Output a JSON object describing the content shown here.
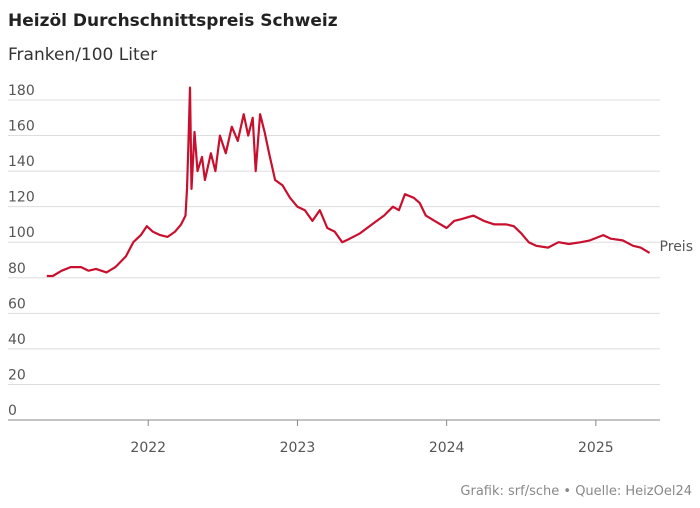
{
  "chart_data": {
    "type": "line",
    "title": "Heizöl Durchschnittspreis Schweiz",
    "subtitle": "Franken/100 Liter",
    "source": "Grafik: srf/sche • Quelle: HeizOel24",
    "x": [
      2021.32,
      2021.36,
      2021.42,
      2021.48,
      2021.55,
      2021.6,
      2021.65,
      2021.72,
      2021.78,
      2021.85,
      2021.9,
      2021.95,
      2021.99,
      2022.03,
      2022.08,
      2022.13,
      2022.18,
      2022.22,
      2022.25,
      2022.26,
      2022.27,
      2022.28,
      2022.29,
      2022.31,
      2022.33,
      2022.36,
      2022.38,
      2022.42,
      2022.45,
      2022.48,
      2022.52,
      2022.56,
      2022.6,
      2022.64,
      2022.67,
      2022.7,
      2022.72,
      2022.75,
      2022.78,
      2022.81,
      2022.85,
      2022.9,
      2022.95,
      2023.0,
      2023.05,
      2023.1,
      2023.15,
      2023.2,
      2023.25,
      2023.3,
      2023.35,
      2023.42,
      2023.5,
      2023.58,
      2023.64,
      2023.68,
      2023.72,
      2023.78,
      2023.82,
      2023.86,
      2023.92,
      2024.0,
      2024.05,
      2024.1,
      2024.18,
      2024.25,
      2024.32,
      2024.4,
      2024.45,
      2024.5,
      2024.55,
      2024.6,
      2024.68,
      2024.75,
      2024.82,
      2024.9,
      2024.96,
      2025.05,
      2025.1,
      2025.18,
      2025.25,
      2025.3,
      2025.36
    ],
    "series": [
      {
        "name": "Preis",
        "color": "#c8102e",
        "values": [
          81,
          81,
          84,
          86,
          86,
          84,
          85,
          83,
          86,
          92,
          100,
          104,
          109,
          106,
          104,
          103,
          106,
          110,
          115,
          130,
          157,
          187,
          130,
          162,
          140,
          148,
          135,
          150,
          140,
          160,
          150,
          165,
          157,
          172,
          160,
          170,
          140,
          172,
          162,
          150,
          135,
          132,
          125,
          120,
          118,
          112,
          118,
          108,
          106,
          100,
          102,
          105,
          110,
          115,
          120,
          118,
          127,
          125,
          122,
          115,
          112,
          108,
          112,
          113,
          115,
          112,
          110,
          110,
          109,
          105,
          100,
          98,
          97,
          100,
          99,
          100,
          101,
          104,
          102,
          101,
          98,
          97,
          94
        ]
      }
    ],
    "xlim": [
      2021.06,
      2025.43
    ],
    "xticks": [
      2022,
      2023,
      2024,
      2025
    ],
    "ylim": [
      0,
      180
    ],
    "yticks": [
      0,
      20,
      40,
      60,
      80,
      100,
      120,
      140,
      160,
      180
    ],
    "grid": true
  }
}
